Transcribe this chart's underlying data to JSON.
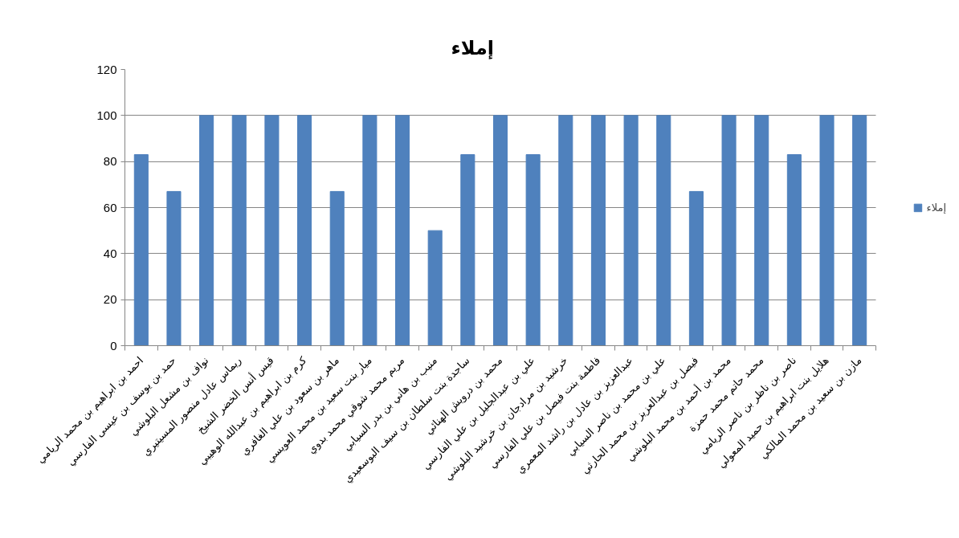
{
  "chart_data": {
    "type": "bar",
    "title": "إملاء",
    "categories": [
      "احمد بن ابراهيم بن محمد الريامي",
      "حمد بن يوسف بن عيسى الفارسي",
      "نواف بن مشعل البلوشي",
      "ريماس عادل منصور المسيتيري",
      "قيس أنس الخضر الشيخ",
      "كرم بن ابراهيم بن عبدالله الوهيبي",
      "ماهر بن سعود بن علي الغافري",
      "ميار بنت سعيد بن محمد العويسي",
      "مريم محمد شوقي محمد بدوي",
      "منيب بن هاني بن بدر السيابي",
      "ساجدة بنت سلطان بن سيف البوسعيدي",
      "محمد بن درويش الهنائي",
      "علي بن عبدالجليل بن علي الفارسي",
      "خرشيد بن مرادجان بن خرشيد البلوشي",
      "فاطمة بنت فيصل بن علي الفارسي",
      "عبدالعزيز بن عادل بن راشد المعمري",
      "علي بن محمد بن ناصر السيابي",
      "فيصل بن عبدالعزيز بن محمد الحارثي",
      "محمد بن أحمد بن محمد البلوشي",
      "محمد حاتم محمد حمزة",
      "ناصر بن ناظر بن ناصر الريامي",
      "هلايل بنت ابراهيم بن حميد المعولي",
      "مازن بن سعيد بن محمد المالكي"
    ],
    "series": [
      {
        "name": "إملاء",
        "color": "#4f81bd",
        "values": [
          83,
          67,
          100,
          100,
          100,
          100,
          67,
          100,
          100,
          50,
          83,
          100,
          83,
          100,
          100,
          100,
          100,
          67,
          100,
          100,
          83,
          100,
          100
        ]
      }
    ],
    "ylim": [
      0,
      120
    ],
    "yticks": [
      0,
      20,
      40,
      60,
      80,
      100,
      120
    ],
    "grid": "y",
    "legend": "right"
  }
}
